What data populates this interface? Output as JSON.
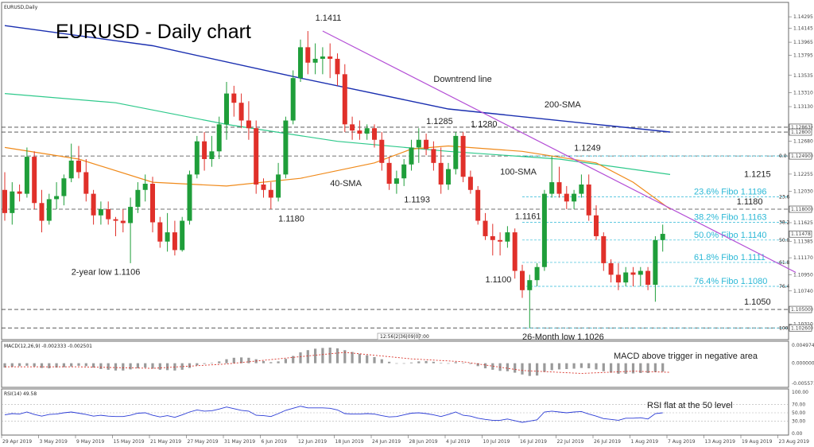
{
  "chart_data": {
    "type": "candlestick",
    "symbol_label": "EURUSD,Daily",
    "title": "EURUSD - Daily chart",
    "price_ylim": [
      1.1015,
      1.1443
    ],
    "price_ticks": [
      "1.14295",
      "1.14145",
      "1.13965",
      "1.13795",
      "1.13535",
      "1.13310",
      "1.13130",
      "1.12875",
      "1.12680",
      "1.12490",
      "1.12255",
      "1.12030",
      "1.11800",
      "1.11625",
      "1.11385",
      "1.11170",
      "1.10950",
      "1.10740",
      "1.10500",
      "1.10310",
      "1.10260"
    ],
    "price_tick_values": [
      1.14295,
      1.14145,
      1.13965,
      1.13795,
      1.13535,
      1.1331,
      1.1313,
      1.12875,
      1.1268,
      1.1249,
      1.12255,
      1.1203,
      1.118,
      1.11625,
      1.11385,
      1.1117,
      1.1095,
      1.1074,
      1.105,
      1.1031,
      1.1026
    ],
    "highlight_labels": [
      {
        "text": "1.12863",
        "value": 1.12863
      },
      {
        "text": "1.12800",
        "value": 1.128
      },
      {
        "text": "1.12490",
        "value": 1.1249
      },
      {
        "text": "1.11800",
        "value": 1.118
      },
      {
        "text": "1.11478",
        "value": 1.11478
      },
      {
        "text": "1.10500",
        "value": 1.105
      },
      {
        "text": "1.10260",
        "value": 1.1026
      }
    ],
    "current_price_label": "1.11478",
    "x_labels": [
      "29 Apr 2019",
      "3 May 2019",
      "9 May 2019",
      "15 May 2019",
      "21 May 2019",
      "27 May 2019",
      "31 May 2019",
      "6 Jun 2019",
      "12 Jun 2019",
      "18 Jun 2019",
      "24 Jun 2019",
      "28 Jun 2019",
      "4 Jul 2019",
      "10 Jul 2019",
      "16 Jul 2019",
      "22 Jul 2019",
      "26 Jul 2019",
      "1 Aug 2019",
      "7 Aug 2019",
      "13 Aug 2019",
      "19 Aug 2019",
      "23 Aug 2019"
    ],
    "candles": [
      [
        1.1205,
        1.1228,
        1.1165,
        1.1175
      ],
      [
        1.1175,
        1.1215,
        1.116,
        1.1203
      ],
      [
        1.1203,
        1.1212,
        1.119,
        1.12
      ],
      [
        1.12,
        1.126,
        1.1195,
        1.1248
      ],
      [
        1.1248,
        1.1255,
        1.118,
        1.1188
      ],
      [
        1.1188,
        1.1205,
        1.115,
        1.1165
      ],
      [
        1.1165,
        1.12,
        1.116,
        1.1193
      ],
      [
        1.1193,
        1.1215,
        1.118,
        1.1197
      ],
      [
        1.1197,
        1.1225,
        1.1185,
        1.122
      ],
      [
        1.122,
        1.1265,
        1.1215,
        1.1243
      ],
      [
        1.1243,
        1.1262,
        1.122,
        1.1228
      ],
      [
        1.1228,
        1.1245,
        1.119,
        1.12
      ],
      [
        1.12,
        1.1205,
        1.116,
        1.1172
      ],
      [
        1.1172,
        1.119,
        1.116,
        1.118
      ],
      [
        1.118,
        1.119,
        1.116,
        1.1167
      ],
      [
        1.1167,
        1.117,
        1.1145,
        1.1165
      ],
      [
        1.1165,
        1.118,
        1.115,
        1.1162
      ],
      [
        1.1162,
        1.1195,
        1.111,
        1.1183
      ],
      [
        1.1183,
        1.1215,
        1.1175,
        1.1205
      ],
      [
        1.1205,
        1.1225,
        1.119,
        1.1213
      ],
      [
        1.1213,
        1.1222,
        1.115,
        1.1163
      ],
      [
        1.1163,
        1.117,
        1.113,
        1.1138
      ],
      [
        1.1138,
        1.1175,
        1.1125,
        1.115
      ],
      [
        1.115,
        1.1165,
        1.112,
        1.1127
      ],
      [
        1.1127,
        1.117,
        1.1125,
        1.1165
      ],
      [
        1.1165,
        1.123,
        1.116,
        1.1225
      ],
      [
        1.1225,
        1.1275,
        1.122,
        1.1268
      ],
      [
        1.1268,
        1.128,
        1.123,
        1.1245
      ],
      [
        1.1245,
        1.1275,
        1.1235,
        1.1255
      ],
      [
        1.1255,
        1.13,
        1.1245,
        1.129
      ],
      [
        1.129,
        1.1345,
        1.127,
        1.133
      ],
      [
        1.133,
        1.134,
        1.13,
        1.1318
      ],
      [
        1.1318,
        1.133,
        1.1285,
        1.1295
      ],
      [
        1.1295,
        1.132,
        1.127,
        1.1285
      ],
      [
        1.1285,
        1.1295,
        1.12,
        1.1212
      ],
      [
        1.1212,
        1.122,
        1.1195,
        1.1205
      ],
      [
        1.1205,
        1.1215,
        1.118,
        1.1195
      ],
      [
        1.1195,
        1.124,
        1.119,
        1.1225
      ],
      [
        1.1225,
        1.13,
        1.122,
        1.1295
      ],
      [
        1.1295,
        1.136,
        1.129,
        1.135
      ],
      [
        1.135,
        1.14,
        1.1345,
        1.139
      ],
      [
        1.139,
        1.1411,
        1.1355,
        1.137
      ],
      [
        1.137,
        1.1395,
        1.1355,
        1.1375
      ],
      [
        1.1375,
        1.139,
        1.1355,
        1.1378
      ],
      [
        1.1378,
        1.1395,
        1.135,
        1.1375
      ],
      [
        1.1375,
        1.1382,
        1.134,
        1.1355
      ],
      [
        1.1355,
        1.1368,
        1.128,
        1.129
      ],
      [
        1.129,
        1.13,
        1.127,
        1.1282
      ],
      [
        1.1282,
        1.1295,
        1.127,
        1.1278
      ],
      [
        1.1278,
        1.129,
        1.127,
        1.1285
      ],
      [
        1.1285,
        1.129,
        1.126,
        1.127
      ],
      [
        1.127,
        1.128,
        1.123,
        1.124
      ],
      [
        1.124,
        1.1248,
        1.1205,
        1.1213
      ],
      [
        1.1213,
        1.123,
        1.12,
        1.122
      ],
      [
        1.122,
        1.1245,
        1.121,
        1.1238
      ],
      [
        1.1238,
        1.127,
        1.123,
        1.126
      ],
      [
        1.126,
        1.1285,
        1.124,
        1.127
      ],
      [
        1.127,
        1.1278,
        1.125,
        1.1258
      ],
      [
        1.1258,
        1.1268,
        1.123,
        1.124
      ],
      [
        1.124,
        1.126,
        1.12,
        1.1212
      ],
      [
        1.1212,
        1.124,
        1.1205,
        1.1232
      ],
      [
        1.1232,
        1.128,
        1.1225,
        1.1275
      ],
      [
        1.1275,
        1.128,
        1.1215,
        1.1222
      ],
      [
        1.1222,
        1.123,
        1.12,
        1.1205
      ],
      [
        1.1205,
        1.121,
        1.116,
        1.1165
      ],
      [
        1.1165,
        1.1175,
        1.114,
        1.1145
      ],
      [
        1.1145,
        1.1161,
        1.112,
        1.114
      ],
      [
        1.114,
        1.115,
        1.112,
        1.1138
      ],
      [
        1.1138,
        1.1158,
        1.113,
        1.115
      ],
      [
        1.115,
        1.1155,
        1.109,
        1.11
      ],
      [
        1.11,
        1.1108,
        1.1065,
        1.1075
      ],
      [
        1.1075,
        1.1095,
        1.1026,
        1.1088
      ],
      [
        1.1088,
        1.111,
        1.108,
        1.1105
      ],
      [
        1.1105,
        1.1205,
        1.11,
        1.12
      ],
      [
        1.12,
        1.1249,
        1.1195,
        1.1215
      ],
      [
        1.1215,
        1.1235,
        1.1195,
        1.12
      ],
      [
        1.12,
        1.121,
        1.118,
        1.119
      ],
      [
        1.119,
        1.1205,
        1.118,
        1.12
      ],
      [
        1.12,
        1.1225,
        1.1195,
        1.1212
      ],
      [
        1.1212,
        1.1225,
        1.1165,
        1.1172
      ],
      [
        1.1172,
        1.1185,
        1.114,
        1.1145
      ],
      [
        1.1145,
        1.115,
        1.11,
        1.111
      ],
      [
        1.111,
        1.1115,
        1.1085,
        1.1095
      ],
      [
        1.1095,
        1.111,
        1.1075,
        1.1085
      ],
      [
        1.1085,
        1.1105,
        1.108,
        1.1098
      ],
      [
        1.1098,
        1.1105,
        1.108,
        1.1095
      ],
      [
        1.1095,
        1.1105,
        1.108,
        1.11
      ],
      [
        1.11,
        1.1105,
        1.1075,
        1.1082
      ],
      [
        1.1082,
        1.1145,
        1.106,
        1.114
      ],
      [
        1.114,
        1.116,
        1.1125,
        1.1148
      ]
    ],
    "sma200": [
      [
        0,
        1.1418
      ],
      [
        20,
        1.1392
      ],
      [
        40,
        1.135
      ],
      [
        60,
        1.131
      ],
      [
        80,
        1.129
      ],
      [
        90,
        1.128
      ]
    ],
    "sma100": [
      [
        0,
        1.133
      ],
      [
        15,
        1.1318
      ],
      [
        30,
        1.129
      ],
      [
        45,
        1.1268
      ],
      [
        60,
        1.1255
      ],
      [
        75,
        1.1245
      ],
      [
        90,
        1.1225
      ]
    ],
    "sma40": [
      [
        0,
        1.126
      ],
      [
        10,
        1.1245
      ],
      [
        20,
        1.1215
      ],
      [
        30,
        1.121
      ],
      [
        40,
        1.122
      ],
      [
        50,
        1.124
      ],
      [
        55,
        1.1258
      ],
      [
        60,
        1.1262
      ],
      [
        70,
        1.1255
      ],
      [
        80,
        1.124
      ],
      [
        85,
        1.1215
      ],
      [
        90,
        1.118
      ]
    ],
    "downtrend": [
      [
        43,
        1.1411
      ],
      [
        107,
        1.1098
      ]
    ],
    "h_lines": [
      1.12863,
      1.128,
      1.1249,
      1.118,
      1.105,
      1.1026
    ],
    "fibo_lines": [
      {
        "label": "23.6% Fibo 1.1196",
        "value": 1.1196,
        "pct": "23.6"
      },
      {
        "label": "38.2% Fibo 1.1163",
        "value": 1.1163,
        "pct": "38.2"
      },
      {
        "label": "50.0% Fibo 1.1140",
        "value": 1.114,
        "pct": "50.0"
      },
      {
        "label": "61.8% Fibo 1.1111",
        "value": 1.1111,
        "pct": "61.8"
      },
      {
        "label": "76.4% Fibo 1.1080",
        "value": 1.108,
        "pct": "76.4"
      }
    ],
    "fibo_edge": [
      {
        "pct": "0.0",
        "value": 1.1249
      },
      {
        "pct": "100.0",
        "value": 1.1026
      }
    ],
    "annotations": [
      {
        "text": "1.1411",
        "i": 42,
        "v": 1.14245
      },
      {
        "text": "1.1285",
        "i": 57,
        "v": 1.12905
      },
      {
        "text": "1.1280",
        "i": 63,
        "v": 1.12865
      },
      {
        "text": "1.1249",
        "i": 77,
        "v": 1.1256
      },
      {
        "text": "1.1215",
        "i": 100,
        "v": 1.1222
      },
      {
        "text": "1.1193",
        "i": 54,
        "v": 1.1189
      },
      {
        "text": "1.1180",
        "i": 37,
        "v": 1.1164
      },
      {
        "text": "1.1161",
        "i": 69,
        "v": 1.1167
      },
      {
        "text": "1.1100",
        "i": 65,
        "v": 1.1085
      },
      {
        "text": "1.1180",
        "i": 99,
        "v": 1.1186
      },
      {
        "text": "1.1050",
        "i": 100,
        "v": 1.1056
      },
      {
        "text": "2-year low 1.1106",
        "i": 9,
        "v": 1.1095
      },
      {
        "text": "26-Month low 1.1026",
        "i": 70,
        "v": 1.1011
      }
    ],
    "line_labels": [
      {
        "text": "Downtrend line",
        "i": 58,
        "v": 1.1345,
        "color": "#b44fd6"
      },
      {
        "text": "200-SMA",
        "i": 73,
        "v": 1.1312,
        "color": "#1a2fb0"
      },
      {
        "text": "100-SMA",
        "i": 67,
        "v": 1.1225,
        "color": "#2ec98b"
      },
      {
        "text": "40-SMA",
        "i": 44,
        "v": 1.121,
        "color": "#f08a1a"
      }
    ],
    "time_box": "12:56|2|36|09|07:00",
    "macd": {
      "label": "MACD(12,26,9) -0.002333 -0.002501",
      "ylim": [
        -0.0062,
        0.0054
      ],
      "ticks": [
        "0.004974",
        "0.000000",
        "-0.005571"
      ],
      "tick_values": [
        0.004974,
        0.0,
        -0.005571
      ],
      "annotation": "MACD above trigger in negative area",
      "histogram": [
        -0.0012,
        -0.001,
        -0.0008,
        -0.0007,
        -0.0009,
        -0.0013,
        -0.0014,
        -0.0012,
        -0.0011,
        -0.0009,
        -0.0007,
        -0.0008,
        -0.0012,
        -0.0016,
        -0.0018,
        -0.002,
        -0.002,
        -0.0017,
        -0.0014,
        -0.0012,
        -0.0015,
        -0.0018,
        -0.0019,
        -0.002,
        -0.0018,
        -0.0013,
        -0.0006,
        -0.0002,
        0.0001,
        0.0005,
        0.0011,
        0.0015,
        0.0016,
        0.0015,
        0.0011,
        0.0006,
        0.0003,
        0.0005,
        0.0012,
        0.002,
        0.003,
        0.0036,
        0.004,
        0.0042,
        0.0043,
        0.0041,
        0.0036,
        0.0031,
        0.0026,
        0.0022,
        0.0017,
        0.0011,
        0.0004,
        0.0,
        -0.0001,
        0.0002,
        0.0005,
        0.0006,
        0.0004,
        0.0001,
        0.0,
        0.0003,
        0.0001,
        -0.0002,
        -0.0008,
        -0.0014,
        -0.0018,
        -0.0021,
        -0.0022,
        -0.0026,
        -0.0031,
        -0.0035,
        -0.0034,
        -0.0024,
        -0.0019,
        -0.0017,
        -0.0016,
        -0.0015,
        -0.0013,
        -0.0014,
        -0.0017,
        -0.0022,
        -0.0026,
        -0.0029,
        -0.0029,
        -0.0028,
        -0.0027,
        -0.0027,
        -0.0024,
        -0.0023
      ],
      "signal": [
        [
          0,
          -0.001
        ],
        [
          10,
          -0.001
        ],
        [
          20,
          -0.0014
        ],
        [
          30,
          -0.0002
        ],
        [
          40,
          0.0018
        ],
        [
          46,
          0.003
        ],
        [
          55,
          0.0012
        ],
        [
          62,
          0.0004
        ],
        [
          70,
          -0.002
        ],
        [
          78,
          -0.0028
        ],
        [
          85,
          -0.0022
        ],
        [
          90,
          -0.0025
        ]
      ]
    },
    "rsi": {
      "label": "RSI(14) 49.58",
      "ylim": [
        0,
        100
      ],
      "ticks": [
        "100.00",
        "70.00",
        "50.00",
        "30.00",
        "0.00"
      ],
      "tick_values": [
        100,
        70,
        50,
        30,
        0
      ],
      "annotation": "RSI flat at the 50 level",
      "values": [
        45,
        48,
        47,
        52,
        46,
        42,
        46,
        47,
        50,
        52,
        49,
        46,
        42,
        44,
        42,
        41,
        41,
        44,
        49,
        50,
        44,
        40,
        43,
        39,
        45,
        52,
        57,
        54,
        55,
        59,
        64,
        60,
        56,
        54,
        44,
        43,
        41,
        48,
        56,
        61,
        66,
        62,
        62,
        62,
        61,
        57,
        48,
        47,
        47,
        48,
        47,
        43,
        40,
        41,
        45,
        49,
        50,
        48,
        45,
        41,
        46,
        52,
        44,
        42,
        37,
        34,
        32,
        32,
        35,
        31,
        27,
        30,
        33,
        52,
        54,
        52,
        50,
        52,
        53,
        47,
        42,
        36,
        34,
        32,
        37,
        37,
        38,
        35,
        48,
        50
      ]
    }
  }
}
